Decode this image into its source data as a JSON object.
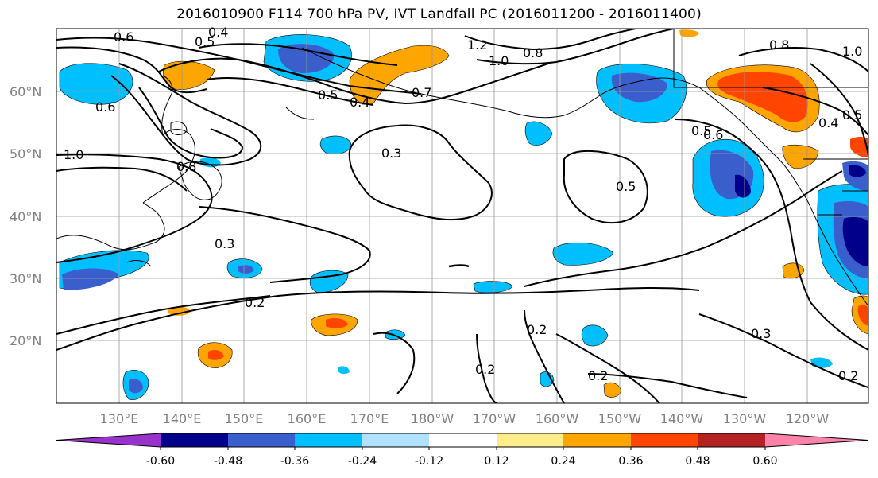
{
  "title": "2016010900 F114 700 hPa PV, IVT Landfall PC (2016011200 - 2016011400)",
  "lat_labels": [
    "60°N",
    "50°N",
    "40°N",
    "30°N",
    "20°N"
  ],
  "lon_labels": [
    "130°E",
    "140°E",
    "150°E",
    "160°E",
    "170°E",
    "180°W",
    "170°W",
    "160°W",
    "150°W",
    "140°W",
    "130°W",
    "120°W"
  ],
  "contour_labels": [
    "0.6",
    "0.5",
    "0.4",
    "1.2",
    "1.0",
    "0.8",
    "0.5",
    "0.4",
    "0.7",
    "0.6",
    "1.0",
    "0.8",
    "0.3",
    "0.5",
    "0.3",
    "0.2",
    "0.2",
    "0.2",
    "0.2",
    "0.3",
    "0.2",
    "0.5",
    "0.8",
    "0.6",
    "1.0",
    "0.4",
    "0.5"
  ],
  "colorbar": {
    "ticks": [
      "-0.60",
      "-0.48",
      "-0.36",
      "-0.24",
      "-0.12",
      "0.12",
      "0.24",
      "0.36",
      "0.48",
      "0.60"
    ],
    "colors": [
      "#9932cc",
      "#00008b",
      "#3a5fcd",
      "#00bfff",
      "#b0e2ff",
      "#ffffff",
      "#ffec8b",
      "#ffa500",
      "#ff4500",
      "#b22222",
      "#ff82ab"
    ]
  }
}
